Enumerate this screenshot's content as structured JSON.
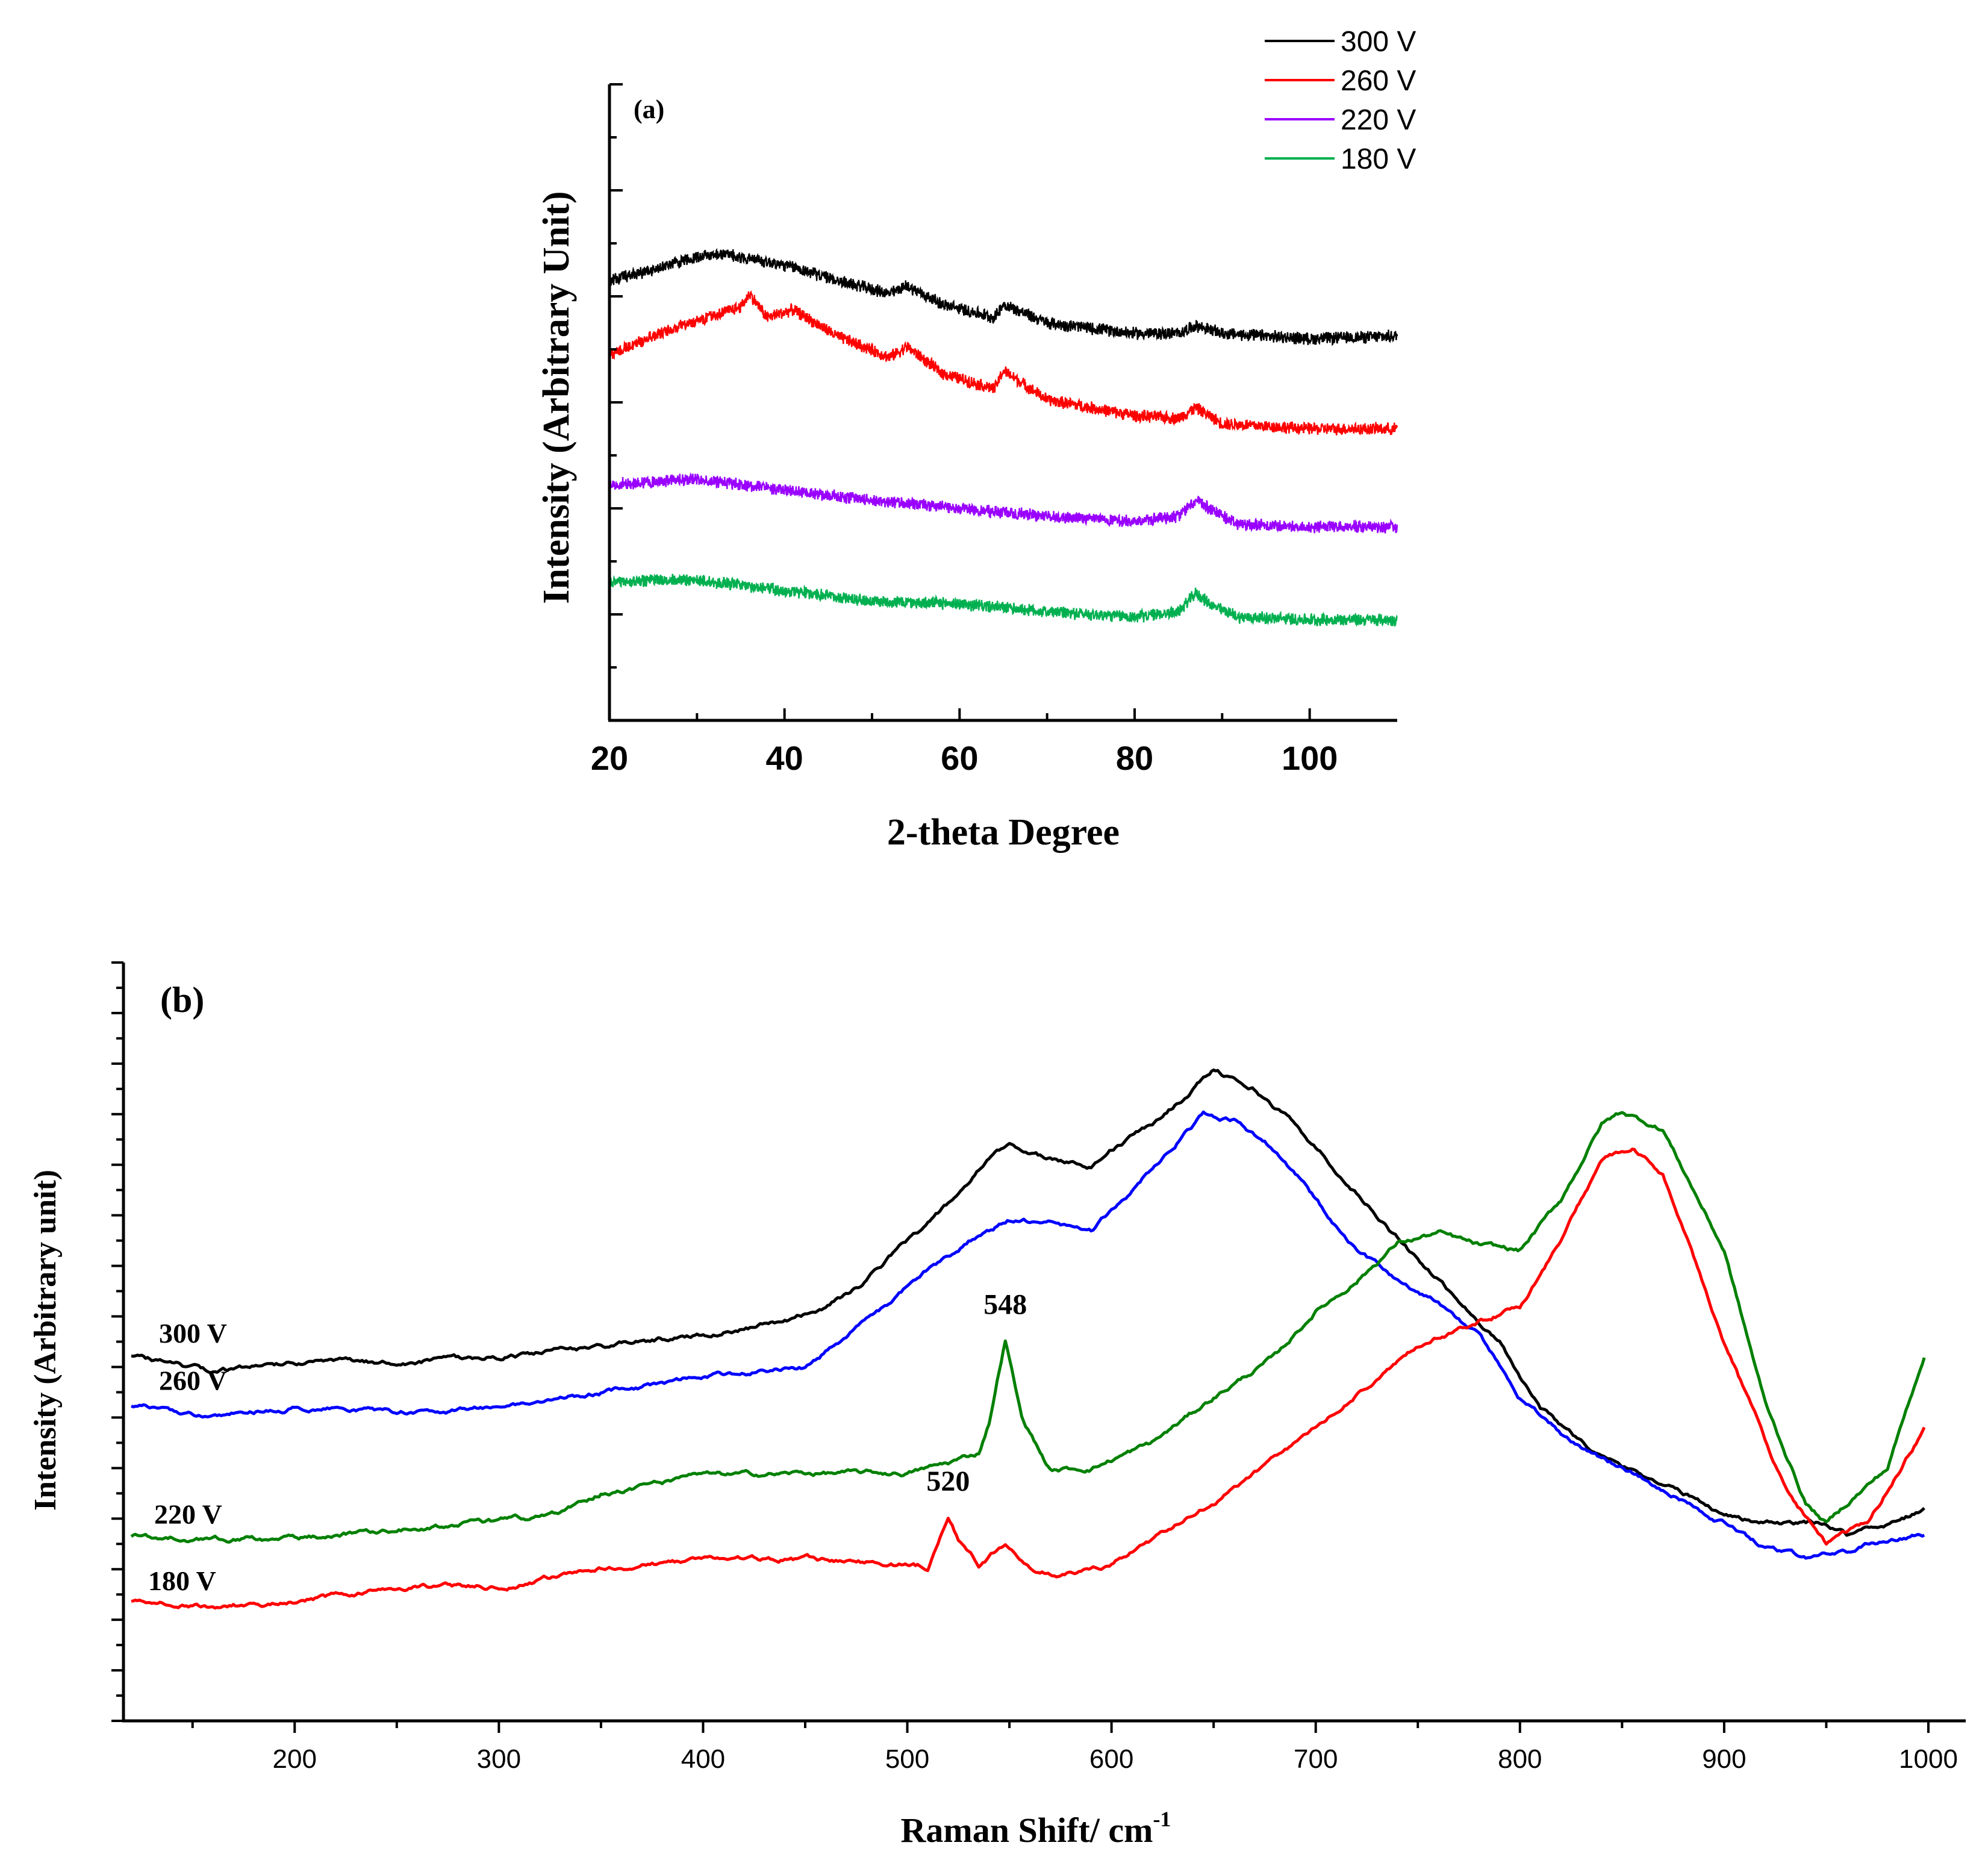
{
  "chart_data": [
    {
      "panel": "(a)",
      "type": "line",
      "xlabel": "2-theta Degree",
      "ylabel": "Intensity (Arbitrary Unit)",
      "xlim": [
        20,
        110
      ],
      "xticks": [
        20,
        40,
        60,
        80,
        100
      ],
      "ylim": [
        0,
        12
      ],
      "y_ticks_labeled": false,
      "legend_position": "top-right",
      "noise_amplitude": 0.13,
      "series": [
        {
          "name": "300 V",
          "color": "#000000",
          "x": [
            20,
            25,
            30,
            33,
            38,
            41,
            46,
            52,
            54,
            58,
            64,
            65,
            70,
            80,
            85,
            87,
            90,
            100,
            110
          ],
          "y": [
            8.3,
            8.5,
            8.75,
            8.8,
            8.65,
            8.55,
            8.3,
            8.05,
            8.2,
            7.85,
            7.6,
            7.85,
            7.5,
            7.3,
            7.3,
            7.45,
            7.3,
            7.2,
            7.25
          ]
        },
        {
          "name": "260 V",
          "color": "#ff0000",
          "x": [
            20,
            25,
            30,
            35,
            36,
            38,
            41,
            46,
            52,
            54,
            58,
            64,
            65,
            70,
            80,
            85,
            87,
            90,
            100,
            110
          ],
          "y": [
            6.9,
            7.25,
            7.55,
            7.8,
            8.05,
            7.6,
            7.75,
            7.25,
            6.85,
            7.05,
            6.55,
            6.25,
            6.6,
            6.05,
            5.75,
            5.7,
            5.9,
            5.6,
            5.5,
            5.5
          ]
        },
        {
          "name": "220 V",
          "color": "#9900ff",
          "x": [
            20,
            25,
            30,
            40,
            50,
            60,
            70,
            80,
            85,
            87,
            89,
            92,
            100,
            110
          ],
          "y": [
            4.45,
            4.5,
            4.55,
            4.35,
            4.15,
            4.0,
            3.85,
            3.75,
            3.85,
            4.15,
            3.95,
            3.7,
            3.65,
            3.65
          ]
        },
        {
          "name": "180 V",
          "color": "#00b050",
          "x": [
            20,
            25,
            30,
            40,
            50,
            60,
            70,
            80,
            85,
            87,
            89,
            92,
            100,
            110
          ],
          "y": [
            2.6,
            2.65,
            2.65,
            2.45,
            2.25,
            2.2,
            2.05,
            1.95,
            2.05,
            2.4,
            2.15,
            1.95,
            1.9,
            1.9
          ]
        }
      ]
    },
    {
      "panel": "(b)",
      "type": "line",
      "xlabel": "Raman Shift/ cm",
      "xlabel_superscript": "-1",
      "ylabel": "Intensity (Arbitrary unit)",
      "xlim": [
        120,
        1000
      ],
      "xticks": [
        200,
        300,
        400,
        500,
        600,
        700,
        800,
        900,
        1000
      ],
      "ylim": [
        0,
        15
      ],
      "y_ticks_labeled": false,
      "series": [
        {
          "name": "300 V",
          "color": "#000000",
          "x": [
            120,
            160,
            200,
            250,
            300,
            350,
            400,
            440,
            460,
            480,
            500,
            520,
            540,
            550,
            570,
            590,
            600,
            620,
            640,
            650,
            670,
            690,
            710,
            730,
            750,
            770,
            790,
            810,
            840,
            870,
            900,
            920,
            940,
            950,
            960,
            980,
            1000
          ],
          "y": [
            7.2,
            6.9,
            7.1,
            7.1,
            7.2,
            7.4,
            7.65,
            7.9,
            8.2,
            8.7,
            9.5,
            10.2,
            11.1,
            11.4,
            11.1,
            11.0,
            11.3,
            11.8,
            12.5,
            12.9,
            12.5,
            11.8,
            10.9,
            10.0,
            9.1,
            8.3,
            7.5,
            6.2,
            5.2,
            4.7,
            4.1,
            3.9,
            3.9,
            3.9,
            3.7,
            3.9,
            4.2
          ]
        },
        {
          "name": "260 V",
          "color": "#0000ff",
          "x": [
            120,
            160,
            200,
            250,
            300,
            350,
            400,
            450,
            470,
            490,
            510,
            530,
            550,
            570,
            590,
            610,
            630,
            645,
            660,
            680,
            700,
            720,
            740,
            760,
            780,
            800,
            820,
            840,
            870,
            900,
            920,
            940,
            950,
            960,
            980,
            1000
          ],
          "y": [
            6.25,
            6.0,
            6.2,
            6.1,
            6.2,
            6.5,
            6.8,
            7.0,
            7.6,
            8.2,
            8.9,
            9.5,
            9.9,
            9.85,
            9.7,
            10.5,
            11.4,
            12.0,
            11.9,
            11.3,
            10.3,
            9.3,
            8.7,
            8.3,
            7.6,
            6.4,
            5.7,
            5.2,
            4.6,
            3.9,
            3.4,
            3.2,
            3.3,
            3.35,
            3.6,
            3.7
          ]
        },
        {
          "name": "220 V",
          "color": "#008000",
          "x": [
            120,
            160,
            200,
            250,
            300,
            330,
            350,
            400,
            450,
            500,
            520,
            535,
            540,
            548,
            556,
            570,
            590,
            620,
            650,
            680,
            700,
            720,
            740,
            760,
            780,
            800,
            820,
            840,
            850,
            870,
            900,
            920,
            940,
            950,
            960,
            980,
            1000
          ],
          "y": [
            3.65,
            3.6,
            3.6,
            3.8,
            3.95,
            4.1,
            4.5,
            4.85,
            4.9,
            4.9,
            5.1,
            5.3,
            5.9,
            7.55,
            6.0,
            4.95,
            5.0,
            5.5,
            6.4,
            7.2,
            8.1,
            8.7,
            9.45,
            9.65,
            9.4,
            9.3,
            10.3,
            11.8,
            12.05,
            11.7,
            9.3,
            6.3,
            4.3,
            3.9,
            4.3,
            5.0,
            7.5
          ]
        },
        {
          "name": "180 V",
          "color": "#ff0000",
          "x": [
            120,
            160,
            200,
            250,
            300,
            350,
            400,
            450,
            500,
            510,
            515,
            520,
            525,
            535,
            548,
            560,
            575,
            600,
            650,
            700,
            750,
            780,
            800,
            820,
            840,
            855,
            870,
            900,
            930,
            950,
            970,
            1000
          ],
          "y": [
            2.35,
            2.25,
            2.35,
            2.65,
            2.65,
            3.0,
            3.2,
            3.2,
            3.1,
            3.05,
            3.5,
            4.05,
            3.6,
            3.1,
            3.5,
            3.0,
            2.85,
            3.1,
            4.3,
            5.8,
            7.4,
            7.9,
            8.2,
            9.5,
            11.1,
            11.3,
            10.8,
            7.5,
            4.6,
            3.5,
            3.9,
            5.9
          ]
        }
      ],
      "curve_labels": [
        {
          "text": "300 V",
          "series": "300 V"
        },
        {
          "text": "260 V",
          "series": "260 V"
        },
        {
          "text": "220 V",
          "series": "220 V"
        },
        {
          "text": "180 V",
          "series": "180 V"
        }
      ],
      "peak_annotations": [
        {
          "text": "548",
          "x": 548,
          "series": "220 V"
        },
        {
          "text": "520",
          "x": 520,
          "series": "180 V"
        }
      ]
    }
  ]
}
